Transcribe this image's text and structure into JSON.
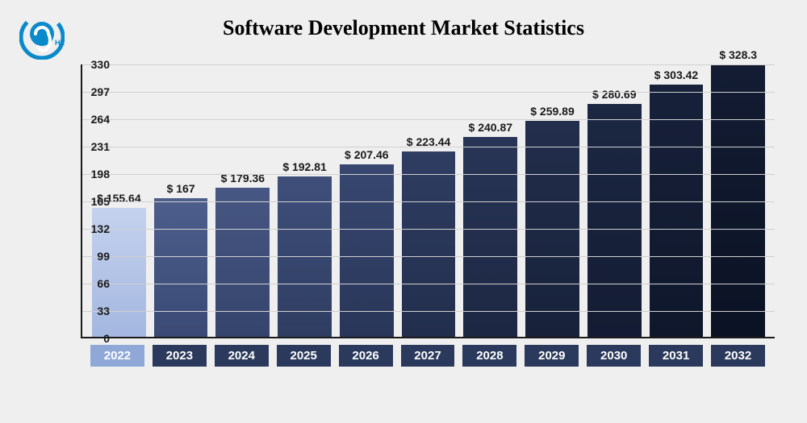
{
  "logo": {
    "outer_circle_color": "#0a8acb",
    "inner_text": "HZ",
    "inner_text_color": "#0a8acb",
    "bg": "#ffffff"
  },
  "title": {
    "text": "Software Development Market Statistics",
    "fontsize": 26,
    "color": "#000000"
  },
  "chart": {
    "type": "bar",
    "background": "#efefef",
    "axis_color": "#1a1a1a",
    "grid_color": "#d0d0d0",
    "ylim": [
      0,
      330
    ],
    "ytick_step": 33,
    "yticks": [
      0,
      33,
      66,
      99,
      132,
      165,
      198,
      231,
      264,
      297,
      330
    ],
    "ytick_fontsize": 14,
    "ytick_color": "#1a1a1a",
    "value_prefix": "$ ",
    "value_fontsize": 14,
    "value_color": "#1a1a1a",
    "xlabel_fontsize": 15,
    "xlabel_bg_default": "#2b3a5c",
    "xlabel_bg_highlight": "#8fa8d8",
    "bar_width": 0.85,
    "data": [
      {
        "year": "2022",
        "value": 155.64,
        "color_top": "#c5d2ee",
        "color_bottom": "#a4b7e0",
        "highlight": true
      },
      {
        "year": "2023",
        "value": 167,
        "color_top": "#4d5e8c",
        "color_bottom": "#3a4a75",
        "highlight": false
      },
      {
        "year": "2024",
        "value": 179.36,
        "color_top": "#475783",
        "color_bottom": "#35446c",
        "highlight": false
      },
      {
        "year": "2025",
        "value": 192.81,
        "color_top": "#3f4f7a",
        "color_bottom": "#2f3d62",
        "highlight": false
      },
      {
        "year": "2026",
        "value": 207.46,
        "color_top": "#384770",
        "color_bottom": "#293659",
        "highlight": false
      },
      {
        "year": "2027",
        "value": 223.44,
        "color_top": "#2f3d62",
        "color_bottom": "#222e4c",
        "highlight": false
      },
      {
        "year": "2028",
        "value": 240.87,
        "color_top": "#283556",
        "color_bottom": "#1c2742",
        "highlight": false
      },
      {
        "year": "2029",
        "value": 259.89,
        "color_top": "#222e4c",
        "color_bottom": "#17213a",
        "highlight": false
      },
      {
        "year": "2030",
        "value": 280.69,
        "color_top": "#1c2742",
        "color_bottom": "#131c33",
        "highlight": false
      },
      {
        "year": "2031",
        "value": 303.42,
        "color_top": "#17213a",
        "color_bottom": "#0f172b",
        "highlight": false
      },
      {
        "year": "2032",
        "value": 328.3,
        "color_top": "#131c33",
        "color_bottom": "#0b1224",
        "highlight": false
      }
    ]
  }
}
